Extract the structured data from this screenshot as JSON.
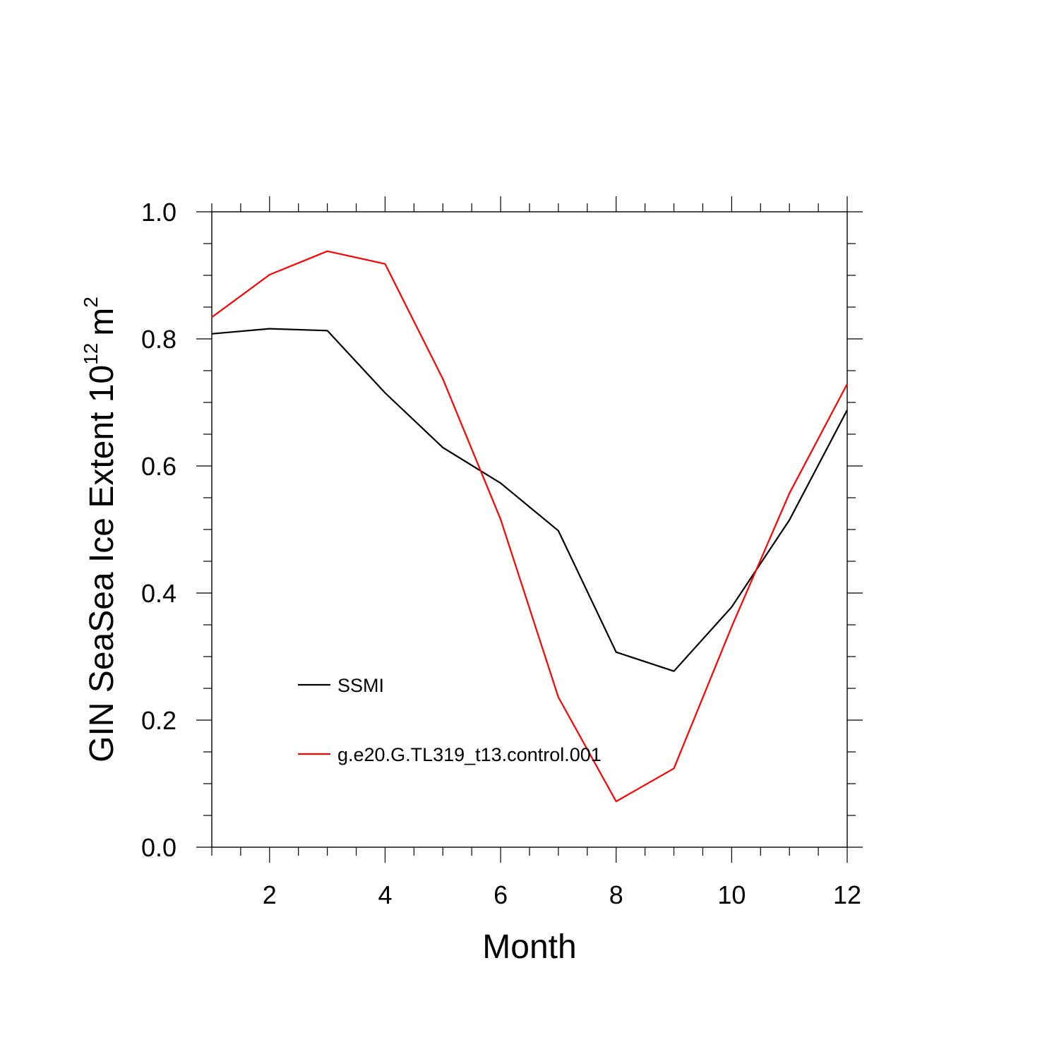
{
  "chart_data": {
    "type": "line",
    "xlabel": "Month",
    "ylabel": {
      "text": "GIN SeaSea Ice Extent 10",
      "exponent": "12",
      "unit": "m",
      "unit_exponent": "2"
    },
    "xlim": [
      1,
      12
    ],
    "ylim": [
      0.0,
      1.0
    ],
    "x_ticks": [
      2,
      4,
      6,
      8,
      10,
      12
    ],
    "x_tick_labels": [
      "2",
      "4",
      "6",
      "8",
      "10",
      "12"
    ],
    "y_ticks": [
      0.0,
      0.2,
      0.4,
      0.6,
      0.8,
      1.0
    ],
    "y_tick_labels": [
      "0.0",
      "0.2",
      "0.4",
      "0.6",
      "0.8",
      "1.0"
    ],
    "x_minor_step": 0.5,
    "y_minor_step": 0.05,
    "grid": false,
    "legend": {
      "placement": "lower-left inside plot"
    },
    "x": [
      1,
      2,
      3,
      4,
      5,
      6,
      7,
      8,
      9,
      10,
      11,
      12
    ],
    "series": [
      {
        "name": "SSMI",
        "color": "#000000",
        "values": [
          0.808,
          0.816,
          0.813,
          0.715,
          0.629,
          0.573,
          0.498,
          0.307,
          0.277,
          0.378,
          0.515,
          0.688
        ]
      },
      {
        "name": "g.e20.G.TL319_t13.control.001",
        "color": "#ff0000",
        "values": [
          0.834,
          0.901,
          0.938,
          0.918,
          0.737,
          0.516,
          0.236,
          0.072,
          0.124,
          0.347,
          0.557,
          0.729
        ]
      }
    ]
  }
}
